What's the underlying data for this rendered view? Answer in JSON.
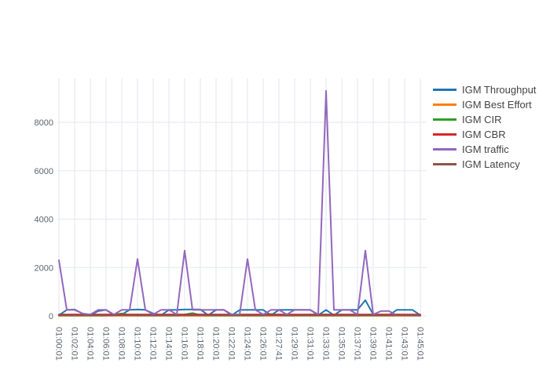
{
  "chart_data": {
    "type": "line",
    "title": "",
    "xlabel": "",
    "ylabel": "",
    "legend_position": "right",
    "grid": true,
    "ylim": [
      0,
      9800
    ],
    "y_ticks": [
      0,
      2000,
      4000,
      6000,
      8000
    ],
    "y_tick_labels": [
      "0",
      "2000",
      "4000",
      "6000",
      "8000"
    ],
    "x_tick_labels": [
      "01:00:01",
      "01:02:01",
      "01:04:01",
      "01:06:01",
      "01:08:01",
      "01:10:01",
      "01:12:01",
      "01:14:01",
      "01:16:01",
      "01:18:01",
      "01:20:01",
      "01:22:01",
      "01:24:01",
      "01:26:01",
      "01:27:41",
      "01:29:01",
      "01:31:01",
      "01:33:01",
      "01:35:01",
      "01:37:01",
      "01:39:01",
      "01:41:01",
      "01:43:01",
      "01:45:01"
    ],
    "x_points_per_tick": 2,
    "colors": {
      "background": "#ffffff",
      "gridline": "#e9ebf0",
      "tick_text": "#5b6570",
      "legend_text": "#444444"
    },
    "series": [
      {
        "name": "IGM Throughput",
        "color": "#1f77b4",
        "values": [
          30,
          250,
          270,
          100,
          30,
          200,
          250,
          30,
          60,
          250,
          270,
          250,
          100,
          30,
          250,
          250,
          270,
          270,
          270,
          30,
          250,
          250,
          30,
          250,
          250,
          250,
          250,
          30,
          250,
          250,
          250,
          250,
          250,
          30,
          250,
          30,
          250,
          250,
          250,
          650,
          60,
          30,
          30,
          250,
          250,
          250,
          30
        ]
      },
      {
        "name": "IGM Best Effort",
        "color": "#ff7f0e",
        "values": [
          5,
          5,
          5,
          5,
          5,
          5,
          5,
          5,
          5,
          5,
          5,
          5,
          5,
          5,
          5,
          5,
          5,
          5,
          5,
          5,
          5,
          5,
          5,
          5,
          5,
          5,
          5,
          5,
          5,
          5,
          5,
          5,
          5,
          5,
          5,
          5,
          5,
          5,
          5,
          5,
          5,
          5,
          5,
          5,
          5,
          5,
          5
        ]
      },
      {
        "name": "IGM CIR",
        "color": "#2ca02c",
        "values": [
          15,
          15,
          15,
          15,
          15,
          15,
          15,
          60,
          100,
          40,
          15,
          15,
          15,
          15,
          15,
          15,
          60,
          120,
          40,
          15,
          15,
          15,
          15,
          15,
          15,
          15,
          15,
          80,
          40,
          15,
          15,
          15,
          15,
          15,
          15,
          15,
          15,
          15,
          15,
          15,
          15,
          15,
          15,
          60,
          30,
          15,
          15
        ]
      },
      {
        "name": "IGM CBR",
        "color": "#d62728",
        "values": [
          60,
          60,
          60,
          60,
          60,
          60,
          60,
          60,
          60,
          60,
          60,
          60,
          60,
          60,
          60,
          60,
          60,
          60,
          60,
          60,
          60,
          60,
          60,
          60,
          60,
          60,
          60,
          60,
          60,
          60,
          60,
          60,
          60,
          60,
          60,
          60,
          60,
          60,
          60,
          60,
          60,
          60,
          60,
          60,
          60,
          60,
          60
        ]
      },
      {
        "name": "IGM traffic",
        "color": "#9467bd",
        "values": [
          2300,
          250,
          250,
          100,
          60,
          250,
          250,
          60,
          250,
          250,
          2350,
          250,
          60,
          250,
          250,
          60,
          2700,
          250,
          250,
          250,
          250,
          250,
          60,
          60,
          2350,
          250,
          60,
          250,
          250,
          60,
          250,
          250,
          250,
          60,
          9300,
          250,
          250,
          250,
          60,
          2700,
          60,
          200,
          200,
          30,
          30,
          30,
          30
        ]
      },
      {
        "name": "IGM Latency",
        "color": "#8c564b",
        "values": [
          25,
          25,
          25,
          25,
          25,
          25,
          25,
          25,
          25,
          25,
          25,
          25,
          25,
          25,
          25,
          25,
          25,
          25,
          25,
          25,
          25,
          25,
          25,
          25,
          25,
          25,
          25,
          25,
          25,
          25,
          25,
          25,
          25,
          25,
          25,
          25,
          25,
          25,
          25,
          25,
          25,
          25,
          25,
          25,
          25,
          25,
          25
        ]
      }
    ]
  }
}
